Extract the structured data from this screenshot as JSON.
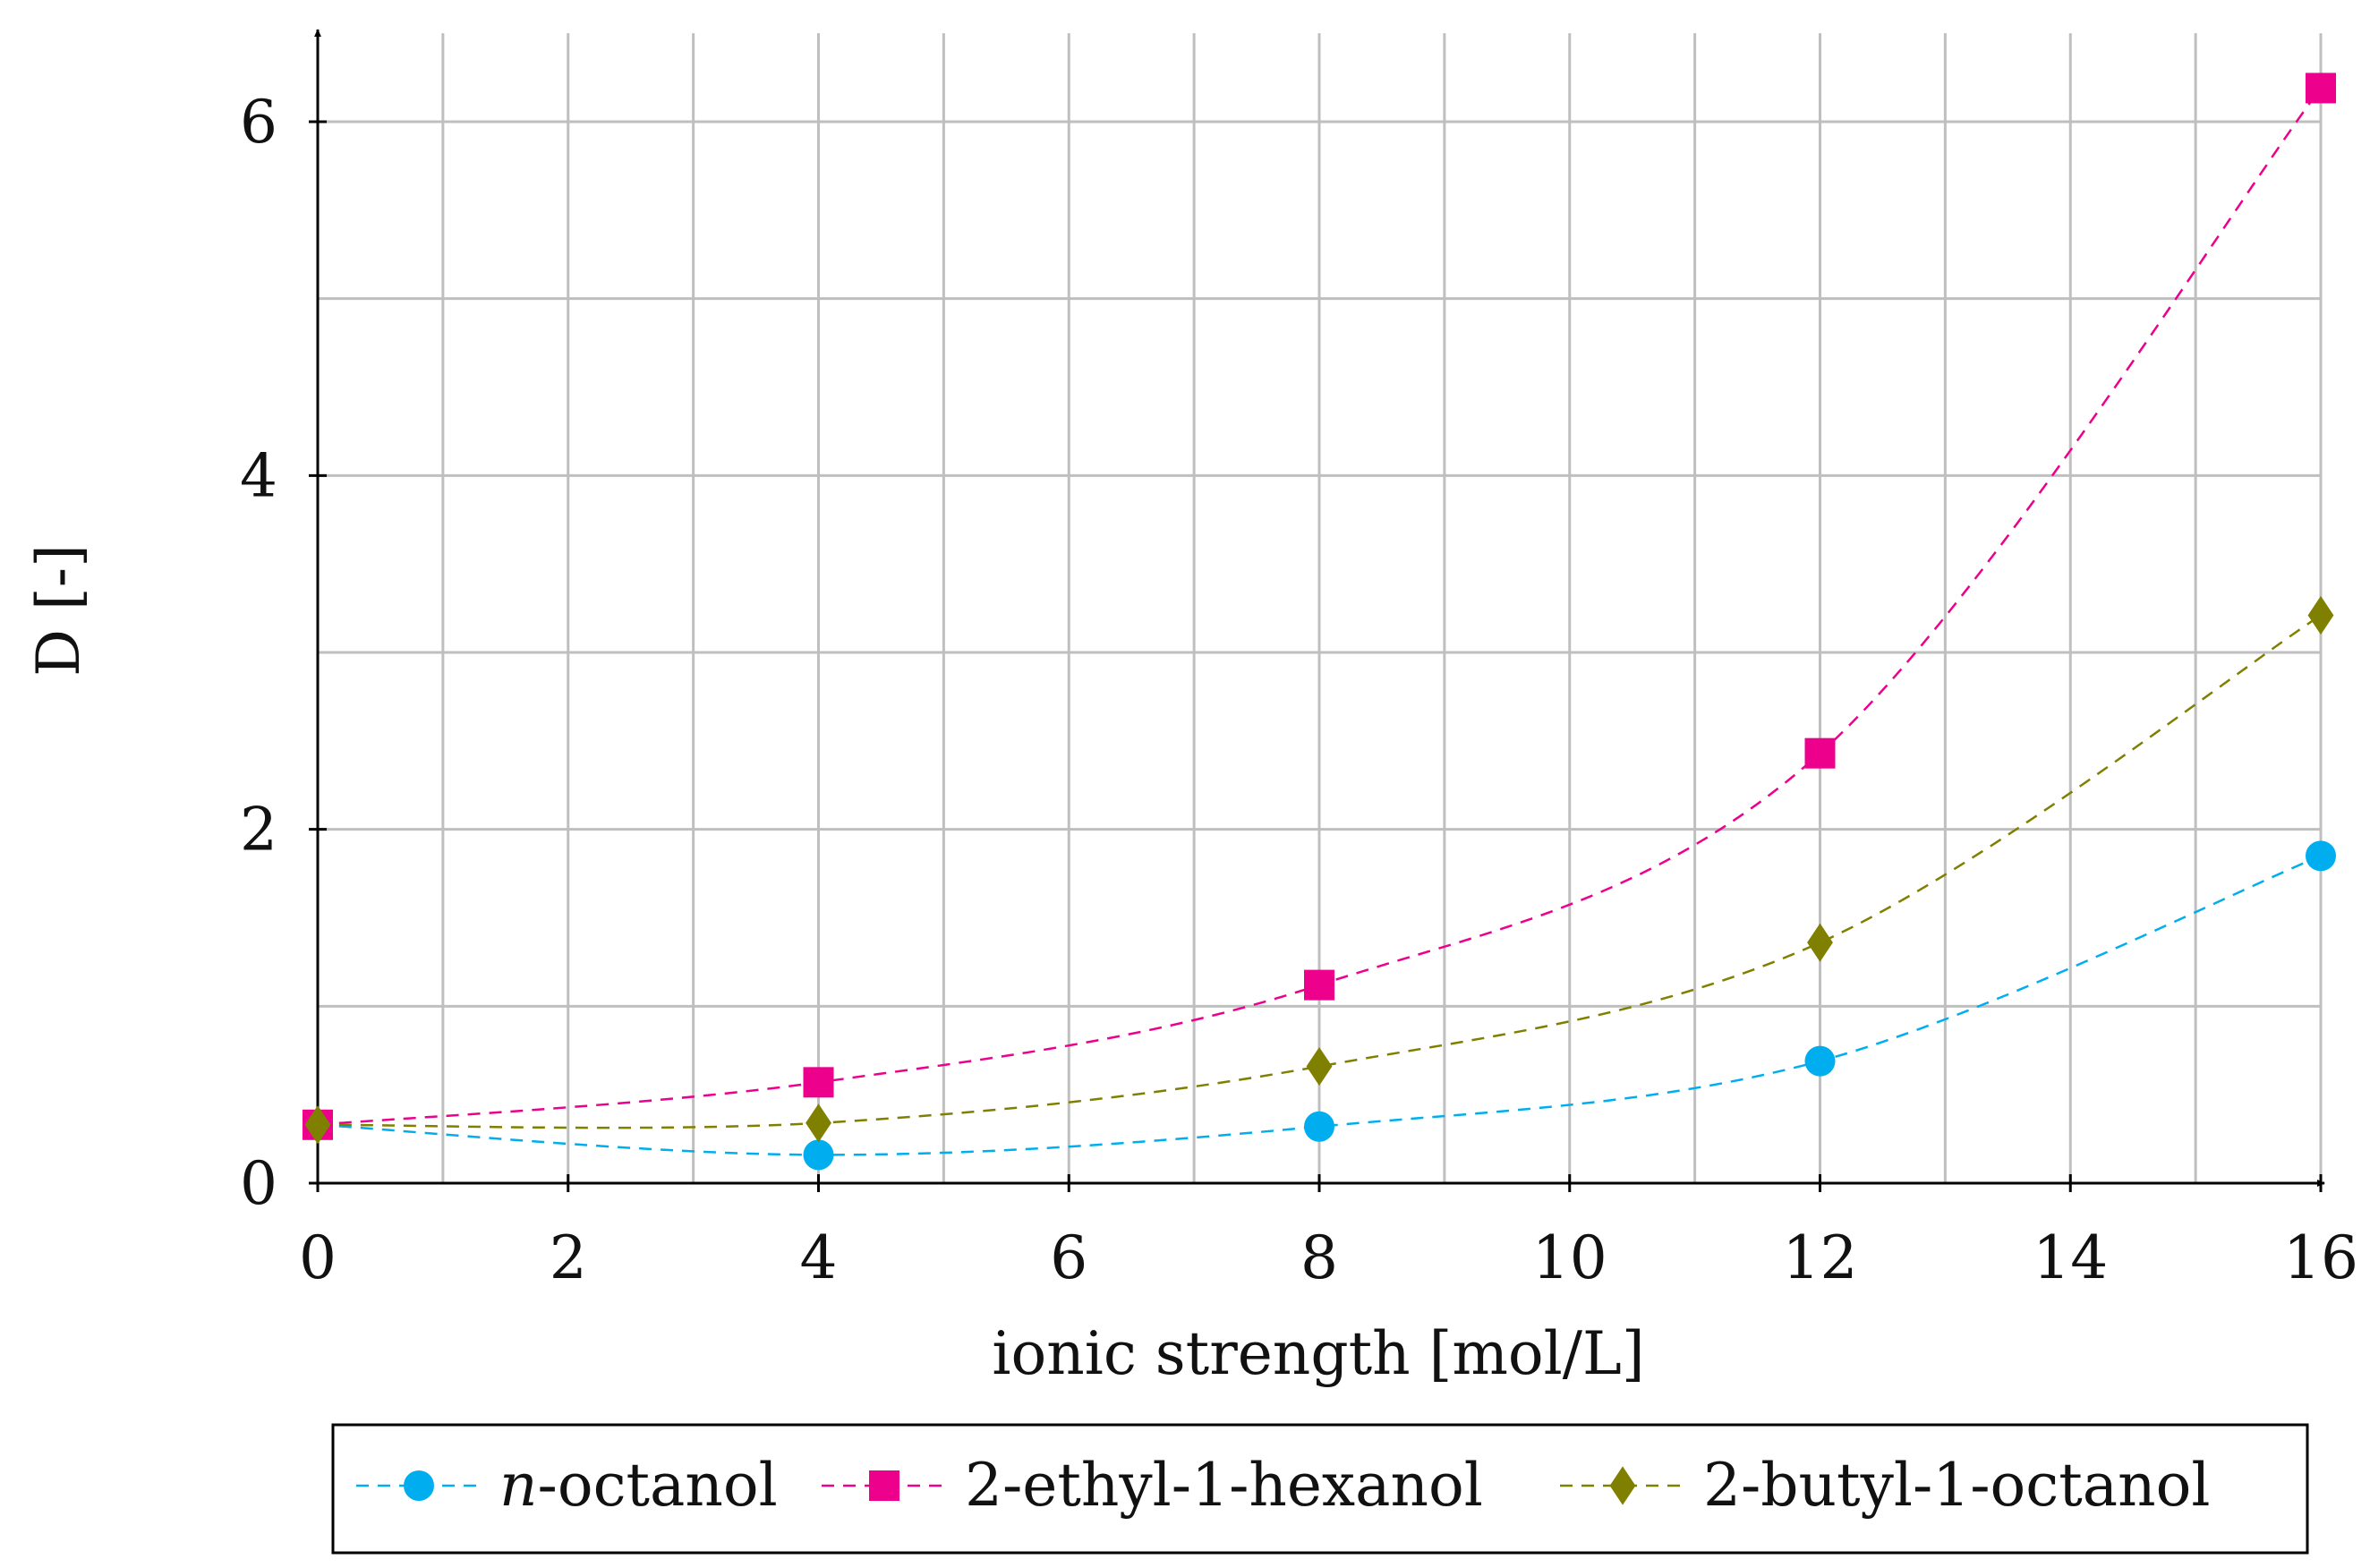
{
  "chart_data": {
    "type": "line",
    "title": "",
    "xlabel": "ionic strength [mol/L]",
    "ylabel": "D [-]",
    "xlim": [
      0,
      16
    ],
    "ylim": [
      0,
      6.5
    ],
    "x_ticks": [
      0,
      2,
      4,
      6,
      8,
      10,
      12,
      14,
      16
    ],
    "y_ticks": [
      0,
      2,
      4,
      6
    ],
    "x_grid": [
      0,
      1,
      2,
      3,
      4,
      5,
      6,
      7,
      8,
      9,
      10,
      11,
      12,
      13,
      14,
      15,
      16
    ],
    "y_grid": [
      0,
      1,
      2,
      3,
      4,
      5,
      6
    ],
    "grid": true,
    "legend_position": "bottom",
    "x": [
      0,
      4,
      8,
      12,
      16
    ],
    "series": [
      {
        "name": "octanol",
        "prefix": "n",
        "marker": "circle",
        "color": "#00aeef",
        "values": [
          0.33,
          0.16,
          0.32,
          0.69,
          1.85
        ]
      },
      {
        "name": "2-ethyl-1-hexanol",
        "prefix": "",
        "marker": "square",
        "color": "#ec008c",
        "values": [
          0.33,
          0.57,
          1.12,
          2.43,
          6.19
        ]
      },
      {
        "name": "2-butyl-1-octanol",
        "prefix": "",
        "marker": "diamond",
        "color": "#808000",
        "values": [
          0.33,
          0.34,
          0.66,
          1.36,
          3.21
        ]
      }
    ]
  }
}
